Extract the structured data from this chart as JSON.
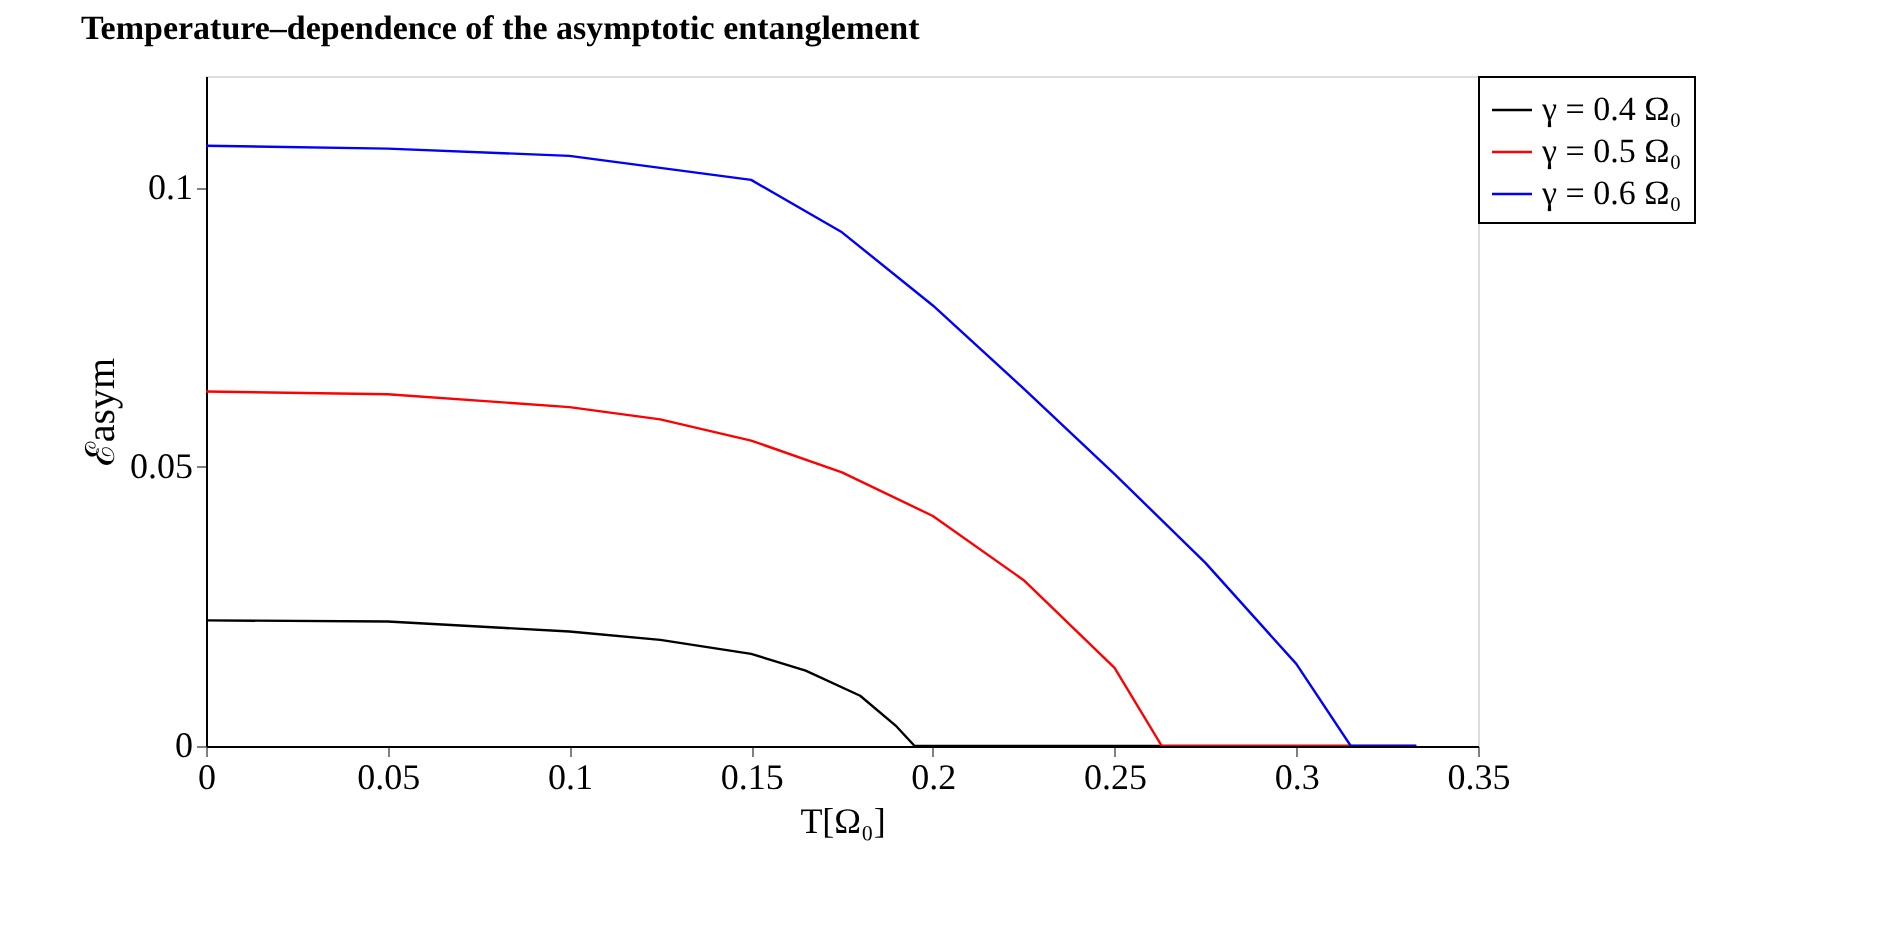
{
  "chart_data": {
    "type": "line",
    "title": "Temperature–dependence of the asymptotic entanglement",
    "xlabel": "T[Ω₀]",
    "ylabel": "ℰasym",
    "xlim": [
      0,
      0.35
    ],
    "xticks": [
      0,
      0.05,
      0.1,
      0.15,
      0.2,
      0.25,
      0.3,
      0.35
    ],
    "ylim": [
      0,
      0.12
    ],
    "yticks": [
      0,
      0.05,
      0.1
    ],
    "grid": false,
    "legend": "top right",
    "line_style": "solid",
    "marker": "none",
    "series": [
      {
        "name": "γ = 0.4 Ω₀",
        "color": "#000000",
        "x": [
          0,
          0.05,
          0.1,
          0.125,
          0.15,
          0.165,
          0.18,
          0.19,
          0.195,
          0.333
        ],
        "values": [
          0.0225,
          0.0223,
          0.0205,
          0.019,
          0.0165,
          0.0135,
          0.009,
          0.0035,
          0,
          0
        ]
      },
      {
        "name": "γ = 0.5 Ω₀",
        "color": "#ff0000",
        "x": [
          0,
          0.05,
          0.1,
          0.125,
          0.15,
          0.175,
          0.2,
          0.225,
          0.25,
          0.263,
          0.333
        ],
        "values": [
          0.0635,
          0.063,
          0.0607,
          0.0585,
          0.0547,
          0.049,
          0.0412,
          0.0297,
          0.014,
          0,
          0
        ]
      },
      {
        "name": "γ = 0.6 Ω₀",
        "color": "#0000ff",
        "x": [
          0,
          0.05,
          0.1,
          0.15,
          0.175,
          0.2,
          0.225,
          0.25,
          0.275,
          0.3,
          0.315,
          0.333
        ],
        "values": [
          0.1075,
          0.107,
          0.1057,
          0.1014,
          0.092,
          0.0789,
          0.064,
          0.0487,
          0.0328,
          0.0147,
          0,
          0
        ]
      }
    ]
  }
}
